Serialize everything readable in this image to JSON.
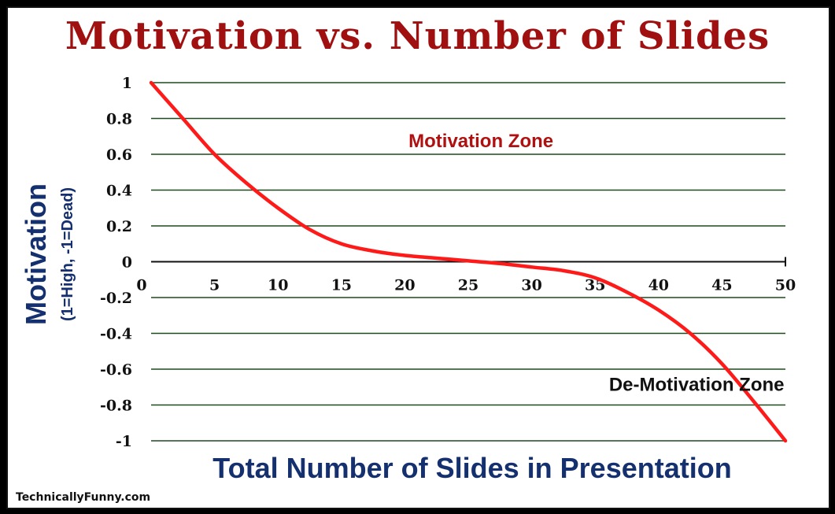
{
  "chart_data": {
    "type": "line",
    "title": "Motivation vs. Number of Slides",
    "xlabel": "Total Number of Slides in Presentation",
    "ylabel": "Motivation",
    "ylabel_sub": "(1=High, -1=Dead)",
    "xlim": [
      0,
      50
    ],
    "ylim": [
      -1,
      1
    ],
    "x_ticks": [
      "0",
      "5",
      "10",
      "15",
      "20",
      "25",
      "30",
      "35",
      "40",
      "45",
      "50"
    ],
    "y_ticks": [
      "1",
      "0.8",
      "0.6",
      "0.4",
      "0.2",
      "0",
      "-0.2",
      "-0.4",
      "-0.6",
      "-0.8",
      "-1"
    ],
    "grid": "horizontal",
    "series": [
      {
        "color": "#ff1a1a",
        "x": [
          0,
          2.5,
          5,
          7.5,
          10,
          12.5,
          15,
          17.5,
          20,
          22.5,
          25,
          27.5,
          30,
          32.5,
          35,
          37.5,
          40,
          42.5,
          45,
          47.5,
          50
        ],
        "y": [
          1,
          0.8,
          0.6,
          0.44,
          0.3,
          0.18,
          0.1,
          0.06,
          0.035,
          0.02,
          0.005,
          -0.01,
          -0.03,
          -0.05,
          -0.09,
          -0.17,
          -0.27,
          -0.4,
          -0.57,
          -0.78,
          -1
        ]
      }
    ],
    "annotations": [
      {
        "text": "Motivation Zone",
        "x": 26,
        "y": 0.64,
        "color": "#b01010"
      },
      {
        "text": "De-Motivation Zone",
        "x": 43,
        "y": -0.72,
        "color": "#111111"
      }
    ]
  },
  "watermark": "TechnicallyFunny.com"
}
